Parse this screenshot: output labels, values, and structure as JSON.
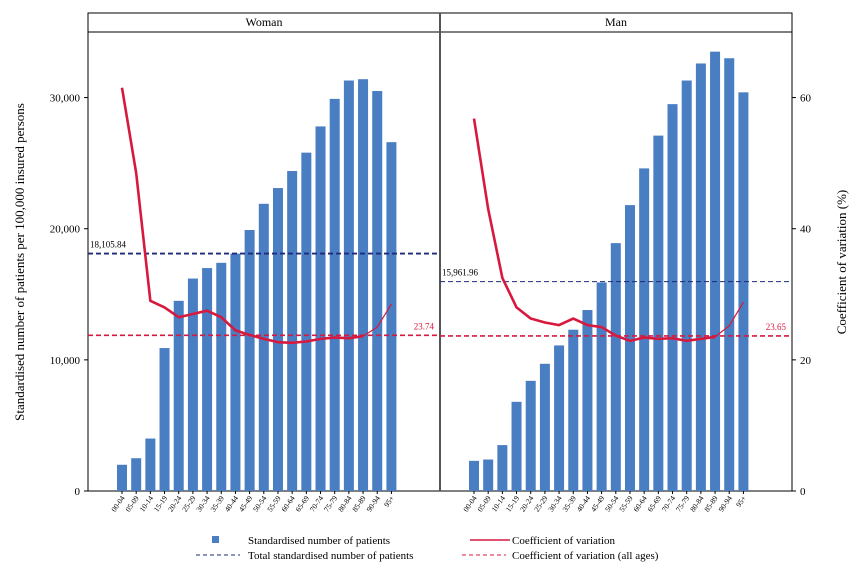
{
  "chart_data": {
    "type": "bar",
    "ylabel": "Standardised number of patients per 100,000 insured persons",
    "y2label": "Coefficient of variation (%)",
    "ylim": [
      0,
      35000
    ],
    "y2lim": [
      0,
      70
    ],
    "yticks": [
      "0",
      "10,000",
      "20,000",
      "30,000"
    ],
    "y2ticks": [
      "0",
      "20",
      "40",
      "60"
    ],
    "categories": [
      "00-04",
      "05-09",
      "10-14",
      "15-19",
      "20-24",
      "25-29",
      "30-34",
      "35-39",
      "40-44",
      "45-49",
      "50-54",
      "55-59",
      "60-64",
      "65-69",
      "70-74",
      "75-79",
      "80-84",
      "85-89",
      "90-94",
      "95+"
    ],
    "legend": [
      {
        "label": "Standardised number of patients",
        "kind": "bar-marker",
        "color": "#4a7ec3"
      },
      {
        "label": "Coefficient of variation",
        "kind": "solid-line",
        "color": "#d7193e"
      },
      {
        "label": "Total standardised number of patients",
        "kind": "dashed-line",
        "color": "#1f2a7a"
      },
      {
        "label": "Coefficient of variation (all ages)",
        "kind": "dashed-line",
        "color": "#d7193e"
      }
    ],
    "panels": [
      {
        "title": "Woman",
        "patients": [
          2000,
          2500,
          4000,
          10900,
          14500,
          16200,
          17000,
          17400,
          18100,
          19900,
          21900,
          23100,
          24400,
          25800,
          27800,
          29900,
          31300,
          31400,
          30500,
          26600
        ],
        "cv": [
          61.5,
          48.5,
          29.0,
          28.0,
          26.5,
          27.0,
          27.5,
          26.5,
          24.5,
          23.8,
          23.2,
          22.7,
          22.6,
          22.8,
          23.2,
          23.4,
          23.3,
          23.6,
          25.0,
          28.5
        ],
        "total_patients": 18105.84,
        "total_patients_label": "18,105.84",
        "cv_all_ages": 23.74,
        "cv_all_ages_label": "23.74"
      },
      {
        "title": "Man",
        "patients": [
          2300,
          2400,
          3500,
          6800,
          8400,
          9700,
          11100,
          12300,
          13800,
          15900,
          18900,
          21800,
          24600,
          27100,
          29500,
          31300,
          32600,
          33500,
          33000,
          30400
        ],
        "cv": [
          56.8,
          43.0,
          32.5,
          28.0,
          26.3,
          25.7,
          25.3,
          26.3,
          25.3,
          25.0,
          23.7,
          22.9,
          23.4,
          23.2,
          23.3,
          22.9,
          23.2,
          23.5,
          25.2,
          28.8
        ],
        "total_patients": 15961.96,
        "total_patients_label": "15,961.96",
        "cv_all_ages": 23.65,
        "cv_all_ages_label": "23.65"
      }
    ],
    "colors": {
      "bar": "#4a7ec3",
      "cv_line": "#d7193e",
      "total_dashed": "#1f2a7a",
      "cv_dashed": "#d7193e"
    }
  }
}
